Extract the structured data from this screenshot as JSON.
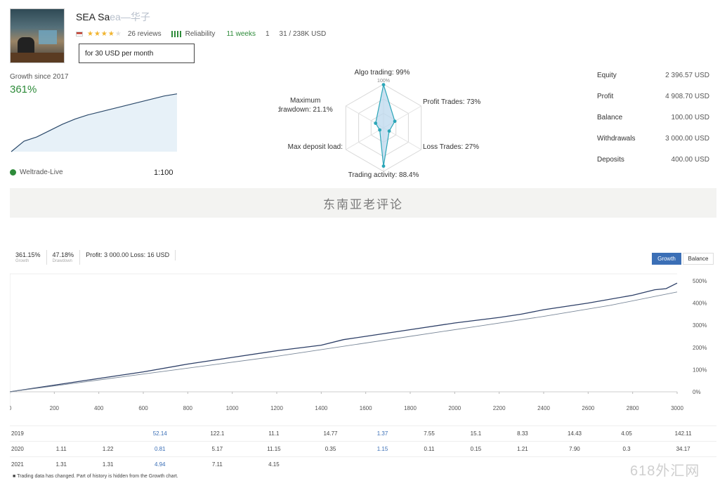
{
  "signal": {
    "title": "SEA Sa",
    "title_obscured": "ea—华子",
    "rating_stars": 4,
    "reviews": "26 reviews",
    "reliability_label": "Reliability",
    "weeks": "11 weeks",
    "subscribers": "1",
    "trades": "31 / 238K USD",
    "subscribe_label": "for 30 USD per month"
  },
  "growth": {
    "label": "Growth since 2017",
    "value": "361%",
    "curve": [
      0.0,
      0.2,
      0.28,
      0.4,
      0.52,
      0.62,
      0.7,
      0.76,
      0.82,
      0.88,
      0.94,
      1.0,
      1.06,
      1.1
    ]
  },
  "broker": {
    "name": "Weltrade-Live",
    "leverage": "1:100"
  },
  "radar": {
    "labels": {
      "algo": "Algo trading: 99%",
      "algo_sub": "100%",
      "profit": "Profit Trades: 73%",
      "loss": "Loss Trades: 27%",
      "activity": "Trading activity: 88.4%",
      "max_deposit": "Max deposit load:",
      "drawdown": "Maximum drawdown: 21.1%"
    },
    "values": {
      "algo": 0.99,
      "profit": 0.3,
      "loss": 0.15,
      "activity": 0.88,
      "max_deposit": 0.1,
      "drawdown": 0.21
    }
  },
  "stats": [
    {
      "label": "Equity",
      "value": "2 396.57 USD"
    },
    {
      "label": "Profit",
      "value": "4 908.70 USD"
    },
    {
      "label": "Balance",
      "value": "100.00 USD"
    },
    {
      "label": "Withdrawals",
      "value": "3 000.00 USD"
    },
    {
      "label": "Deposits",
      "value": "400.00 USD"
    }
  ],
  "banner": "东南亚老评论",
  "main_chart": {
    "header": [
      {
        "value": "361.15%",
        "caption": "Growth"
      },
      {
        "value": "47.18%",
        "caption": "Drawdown"
      },
      {
        "value": "Profit: 3 000.00 Loss: 16 USD",
        "caption": ""
      }
    ],
    "btn_growth": "Growth",
    "btn_balance": "Balance"
  },
  "chart_data": {
    "type": "line",
    "x_ticks": [
      "0",
      "200",
      "400",
      "600",
      "800",
      "1000",
      "1200",
      "1400",
      "1600",
      "1800",
      "2000",
      "2200",
      "2400",
      "2600",
      "2800",
      "3000"
    ],
    "y_ticks": [
      "0%",
      "100%",
      "200%",
      "300%",
      "400%",
      "500%"
    ],
    "ylim": [
      0,
      500
    ],
    "xlim": [
      0,
      3000
    ],
    "series": [
      {
        "x": [
          0,
          200,
          400,
          600,
          800,
          1000,
          1200,
          1400,
          1500,
          1600,
          1800,
          2000,
          2200,
          2300,
          2400,
          2600,
          2800,
          2900,
          2950,
          3000
        ],
        "values": [
          0,
          30,
          60,
          90,
          125,
          155,
          185,
          210,
          235,
          250,
          280,
          310,
          335,
          350,
          370,
          400,
          435,
          460,
          465,
          490
        ]
      },
      {
        "x": [
          0,
          300,
          600,
          900,
          1200,
          1500,
          1800,
          2100,
          2400,
          2700,
          3000
        ],
        "values": [
          0,
          40,
          80,
          120,
          160,
          205,
          250,
          295,
          340,
          390,
          450
        ]
      }
    ]
  },
  "monthly": {
    "rows": [
      {
        "year": "2019",
        "cells": [
          "",
          "",
          "52.14",
          "122.1",
          "11.1",
          "14.77",
          "1.37",
          "7.55",
          "15.1",
          "8.33",
          "14.43",
          "4.05",
          "142.11"
        ]
      },
      {
        "year": "2020",
        "cells": [
          "1.11",
          "1.22",
          "0.81",
          "5.17",
          "11.15",
          "0.35",
          "1.15",
          "0.11",
          "0.15",
          "1.21",
          "7.90",
          "0.3",
          "34.17"
        ]
      },
      {
        "year": "2021",
        "cells": [
          "1.31",
          "1.31",
          "4.94",
          "7.11",
          "4.15",
          "",
          "",
          "",
          "",
          "",
          "",
          "",
          ""
        ]
      }
    ],
    "blue_cols": [
      2,
      6
    ]
  },
  "footnote": "Trading data has changed. Part of history is hidden from the Growth chart.",
  "watermark": "618外汇网"
}
